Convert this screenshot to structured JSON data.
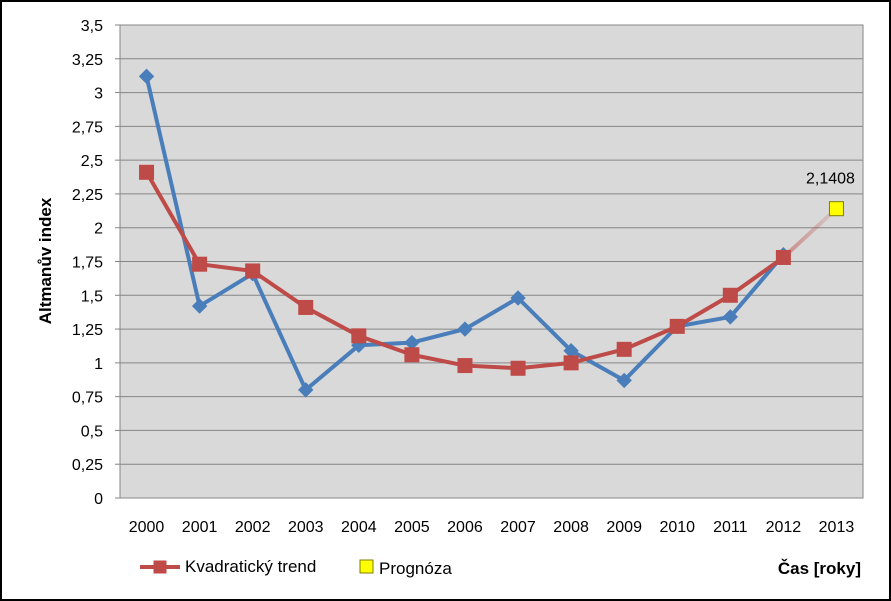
{
  "chart_data": {
    "type": "line",
    "title": "",
    "xlabel": "Čas [roky]",
    "ylabel": "Altmanův index",
    "categories": [
      "2000",
      "2001",
      "2002",
      "2003",
      "2004",
      "2005",
      "2006",
      "2007",
      "2008",
      "2009",
      "2010",
      "2011",
      "2012",
      "2013"
    ],
    "ylim": [
      0,
      3.5
    ],
    "yticks": [
      0,
      0.25,
      0.5,
      0.75,
      1,
      1.25,
      1.5,
      1.75,
      2,
      2.25,
      2.5,
      2.75,
      3,
      3.25,
      3.5
    ],
    "ytick_labels": [
      "0",
      "0,25",
      "0,5",
      "0,75",
      "1",
      "1,25",
      "1,5",
      "1,75",
      "2",
      "2,25",
      "2,5",
      "2,75",
      "3",
      "3,25",
      "3,5"
    ],
    "grid": true,
    "legend_position": "bottom-left",
    "series": [
      {
        "name": "",
        "color": "#4a7ebb",
        "marker": "diamond",
        "values": [
          3.12,
          1.42,
          1.66,
          0.8,
          1.13,
          1.15,
          1.25,
          1.48,
          1.09,
          0.87,
          1.27,
          1.34,
          1.8,
          null
        ]
      },
      {
        "name": "Kvadratický trend",
        "color": "#be4b48",
        "marker": "square",
        "values": [
          2.41,
          1.73,
          1.68,
          1.41,
          1.2,
          1.06,
          0.98,
          0.96,
          1.0,
          1.1,
          1.27,
          1.5,
          1.78,
          null
        ]
      },
      {
        "name": "Prognóza",
        "color": "#ffff00",
        "marker": "square",
        "values": [
          null,
          null,
          null,
          null,
          null,
          null,
          null,
          null,
          null,
          null,
          null,
          null,
          null,
          2.1408
        ]
      }
    ],
    "annotations": [
      {
        "text": "2,1408",
        "x": "2013",
        "y": 2.1408
      }
    ]
  }
}
